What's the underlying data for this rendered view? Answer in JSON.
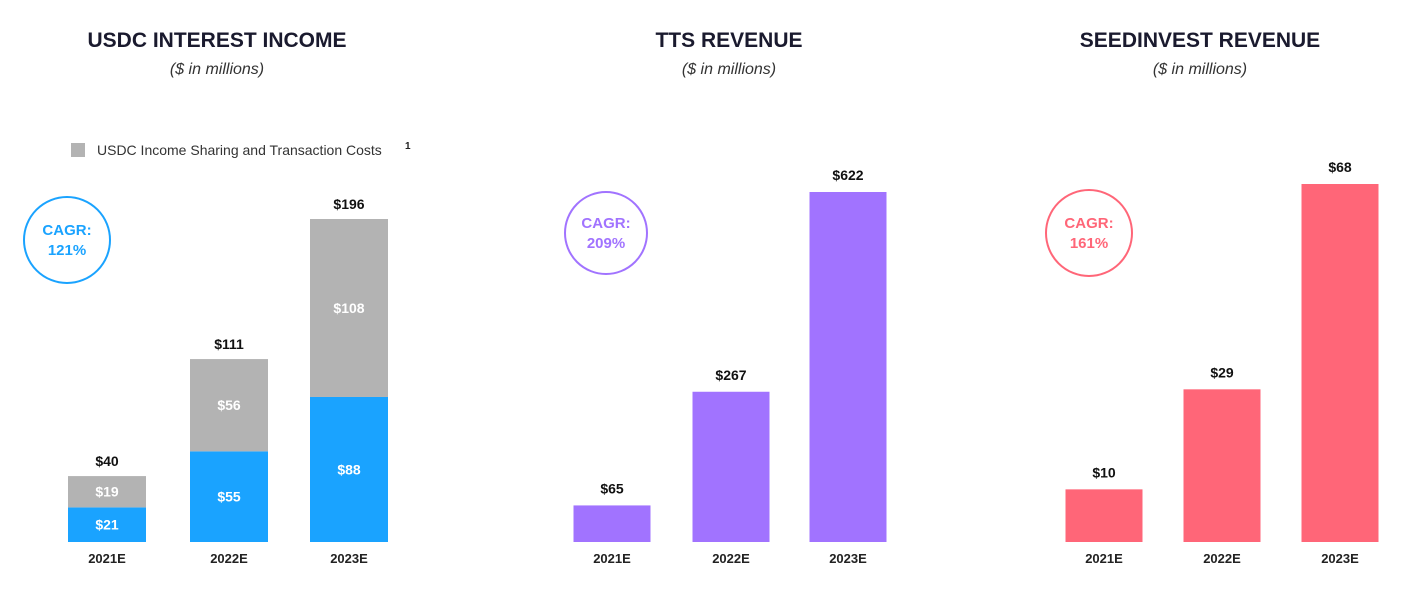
{
  "chart_data": [
    {
      "type": "bar",
      "stacked": true,
      "title": "USDC INTEREST INCOME",
      "subtitle": "($ in millions)",
      "categories": [
        "2021E",
        "2022E",
        "2023E"
      ],
      "series": [
        {
          "name": "",
          "values": [
            21,
            55,
            88
          ],
          "labels": [
            "$21",
            "$55",
            "$88"
          ],
          "color": "#1aa3ff"
        },
        {
          "name": "USDC Income Sharing and Transaction Costs",
          "values": [
            19,
            56,
            108
          ],
          "labels": [
            "$19",
            "$56",
            "$108"
          ],
          "color": "#b3b3b3"
        }
      ],
      "totals": [
        40,
        111,
        196
      ],
      "total_labels": [
        "$40",
        "$111",
        "$196"
      ],
      "legend": {
        "text": "USDC Income Sharing and Transaction Costs",
        "superscript": "1",
        "placement": "top-left"
      },
      "cagr": {
        "label": "CAGR:",
        "value": "121%",
        "color": "#1aa3ff"
      },
      "ylim": [
        0,
        196
      ],
      "grid": false
    },
    {
      "type": "bar",
      "title": "TTS REVENUE",
      "subtitle": "($ in millions)",
      "categories": [
        "2021E",
        "2022E",
        "2023E"
      ],
      "values": [
        65,
        267,
        622
      ],
      "value_labels": [
        "$65",
        "$267",
        "$622"
      ],
      "color": "#a173ff",
      "cagr": {
        "label": "CAGR:",
        "value": "209%",
        "color": "#a173ff"
      },
      "ylim": [
        0,
        622
      ],
      "grid": false
    },
    {
      "type": "bar",
      "title": "SEEDINVEST REVENUE",
      "subtitle": "($ in millions)",
      "categories": [
        "2021E",
        "2022E",
        "2023E"
      ],
      "values": [
        10,
        29,
        68
      ],
      "value_labels": [
        "$10",
        "$29",
        "$68"
      ],
      "color": "#ff6678",
      "cagr": {
        "label": "CAGR:",
        "value": "161%",
        "color": "#ff6678"
      },
      "ylim": [
        0,
        68
      ],
      "grid": false
    }
  ]
}
